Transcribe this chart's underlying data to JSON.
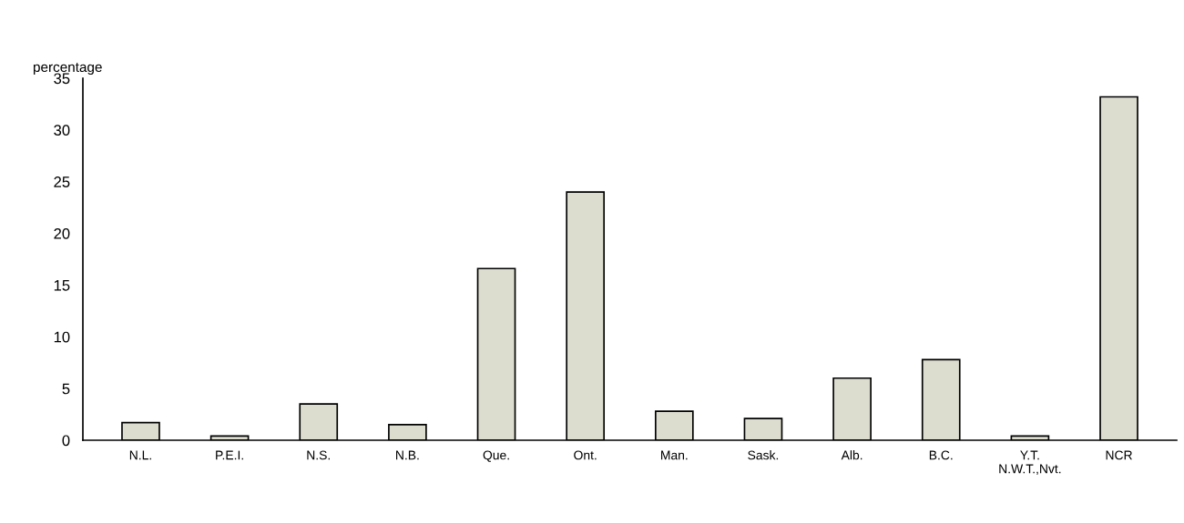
{
  "chart_data": {
    "type": "bar",
    "ylabel": "percentage",
    "categories": [
      "N.L.",
      "P.E.I.",
      "N.S.",
      "N.B.",
      "Que.",
      "Ont.",
      "Man.",
      "Sask.",
      "Alb.",
      "B.C.",
      "Y.T.\nN.W.T.,Nvt.",
      "NCR"
    ],
    "values": [
      1.7,
      0.4,
      3.5,
      1.5,
      16.6,
      24.0,
      2.8,
      2.1,
      6.0,
      7.8,
      0.4,
      33.2
    ],
    "color": "#dcdccf",
    "ylim": [
      0,
      35
    ],
    "yticks": [
      0,
      5,
      10,
      15,
      20,
      25,
      30,
      35
    ],
    "grid": false,
    "legend": false
  }
}
